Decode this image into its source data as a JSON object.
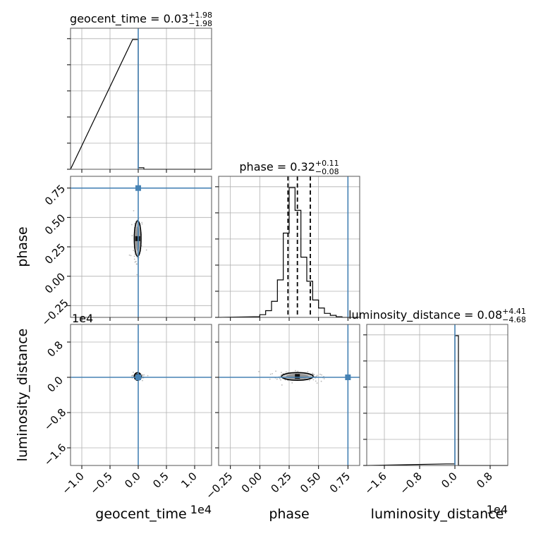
{
  "chart_data": {
    "type": "corner",
    "parameters": [
      {
        "name": "geocent_time",
        "title_main": "geocent_time = 0.03",
        "title_plus": "+1.98",
        "title_minus": "−1.98",
        "xlabel": "geocent_time",
        "offset_label": "1e4",
        "range": [
          -12000,
          13000
        ],
        "ticks": [
          -10000,
          -5000,
          0,
          5000,
          10000
        ],
        "tick_labels": [
          "−1.0",
          "−0.5",
          "0.0",
          "0.5",
          "1.0"
        ],
        "truth": 0,
        "quantiles": [],
        "hist_bins": [
          -1000,
          0,
          1000,
          2000
        ],
        "hist_counts": [
          1.0,
          0.012,
          0.0
        ]
      },
      {
        "name": "phase",
        "title_main": "phase = 0.32",
        "title_plus": "+0.11",
        "title_minus": "−0.08",
        "xlabel": "phase",
        "ylabel": "phase",
        "range": [
          -0.35,
          0.85
        ],
        "ticks": [
          -0.25,
          0.0,
          0.25,
          0.5,
          0.75
        ],
        "tick_labels": [
          "−0.25",
          "0.00",
          "0.25",
          "0.50",
          "0.75"
        ],
        "truth": 0.75,
        "quantiles": [
          0.24,
          0.32,
          0.43
        ],
        "hist_bins": [
          -0.05,
          0.0,
          0.05,
          0.1,
          0.15,
          0.2,
          0.25,
          0.3,
          0.35,
          0.4,
          0.45,
          0.5,
          0.55,
          0.6,
          0.65,
          0.7,
          0.75
        ],
        "hist_counts": [
          0.005,
          0.02,
          0.05,
          0.12,
          0.28,
          0.63,
          0.97,
          0.8,
          0.45,
          0.27,
          0.13,
          0.07,
          0.03,
          0.015,
          0.005,
          0.0
        ]
      },
      {
        "name": "luminosity_distance",
        "title_main": "luminosity_distance = 0.08",
        "title_plus": "+4.41",
        "title_minus": "−4.68",
        "xlabel": "luminosity_distance",
        "ylabel": "luminosity_distance",
        "offset_label": "1e4",
        "range": [
          -20000,
          12000
        ],
        "ticks": [
          -16000,
          -8000,
          0,
          8000
        ],
        "tick_labels": [
          "−1.6",
          "−0.8",
          "0.0",
          "0.8"
        ],
        "truth": 0,
        "quantiles": [],
        "hist_bins": [
          -2000,
          0,
          800,
          2000
        ],
        "hist_counts": [
          0.012,
          1.0,
          0.0
        ]
      }
    ],
    "truth_color": "#4682b4",
    "contour_color": "#000000",
    "grid": true,
    "pairs": {
      "phase_vs_geocent_time": {
        "center": [
          -100,
          0.32
        ],
        "x_sd": 250,
        "y_sd": 0.07
      },
      "luminosity_distance_vs_geocent_time": {
        "center": [
          -100,
          200
        ],
        "x_sd": 300,
        "y_sd": 200
      },
      "luminosity_distance_vs_phase": {
        "center": [
          0.32,
          200
        ],
        "x_sd": 0.07,
        "y_sd": 400
      }
    }
  }
}
